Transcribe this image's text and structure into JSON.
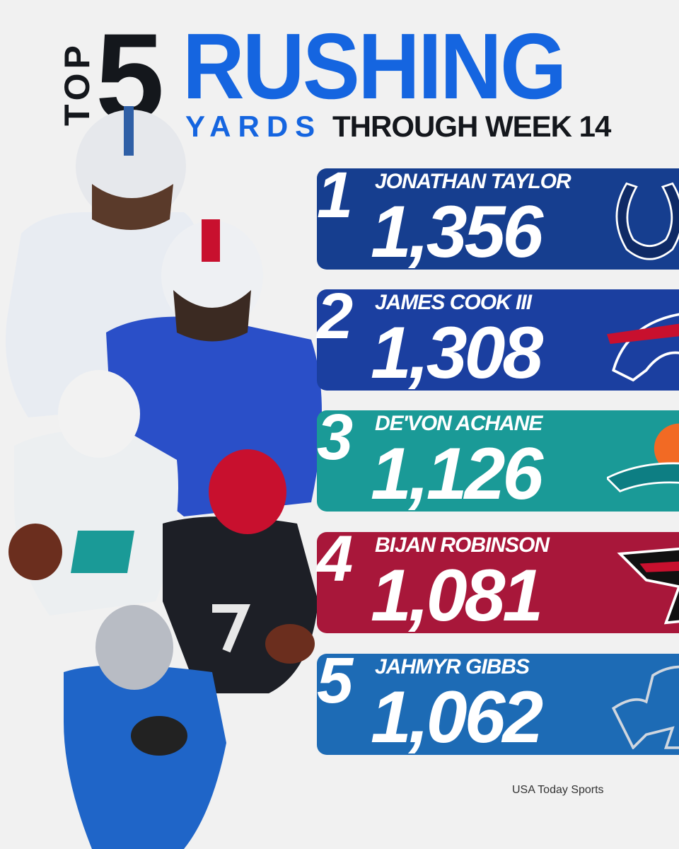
{
  "header": {
    "top": "TOP",
    "five": "5",
    "rushing": "RUSHING",
    "yards": "YARDS",
    "through": "THROUGH WEEK 14"
  },
  "rankings": [
    {
      "rank": "1",
      "name": "JONATHAN TAYLOR",
      "yards": "1,356",
      "team": "Colts",
      "logo": "horseshoe-icon",
      "color": "#163e8f"
    },
    {
      "rank": "2",
      "name": "JAMES COOK III",
      "yards": "1,308",
      "team": "Bills",
      "logo": "buffalo-icon",
      "color": "#1b3fa0"
    },
    {
      "rank": "3",
      "name": "DE'VON ACHANE",
      "yards": "1,126",
      "team": "Dolphins",
      "logo": "dolphin-icon",
      "color": "#1a9a97"
    },
    {
      "rank": "4",
      "name": "BIJAN ROBINSON",
      "yards": "1,081",
      "team": "Falcons",
      "logo": "falcon-icon",
      "color": "#a8173a"
    },
    {
      "rank": "5",
      "name": "JAHMYR GIBBS",
      "yards": "1,062",
      "team": "Lions",
      "logo": "lion-icon",
      "color": "#1d6bb5"
    }
  ],
  "credit": "USA Today Sports"
}
